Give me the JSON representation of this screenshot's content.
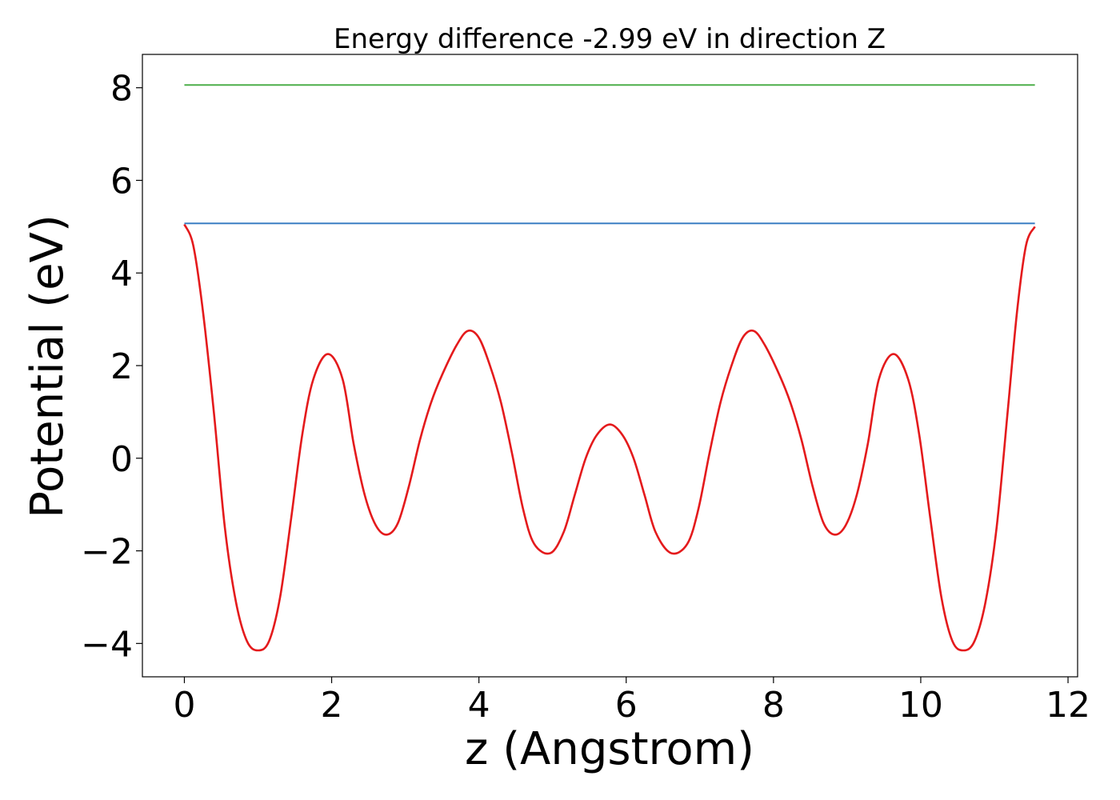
{
  "chart_data": {
    "type": "line",
    "title": "Energy difference -2.99 eV in direction Z",
    "xlabel": "z (Angstrom)",
    "ylabel": "Potential (eV)",
    "xlim": [
      -0.57,
      12.13
    ],
    "ylim": [
      -4.72,
      8.72
    ],
    "grid": false,
    "x_ticks": [
      0,
      2,
      4,
      6,
      8,
      10,
      12
    ],
    "x_tick_labels": [
      "0",
      "2",
      "4",
      "6",
      "8",
      "10",
      "12"
    ],
    "y_ticks": [
      -4,
      -2,
      0,
      2,
      4,
      6,
      8
    ],
    "y_tick_labels": [
      "−4",
      "−2",
      "0",
      "2",
      "4",
      "6",
      "8"
    ],
    "series": [
      {
        "name": "potential",
        "color": "#e41a1c",
        "x": [
          0.0,
          0.12,
          0.25,
          0.4,
          0.55,
          0.7,
          0.85,
          1.0,
          1.15,
          1.3,
          1.45,
          1.6,
          1.75,
          1.95,
          2.15,
          2.3,
          2.45,
          2.6,
          2.75,
          2.9,
          3.05,
          3.2,
          3.35,
          3.5,
          3.7,
          3.85,
          4.0,
          4.15,
          4.3,
          4.45,
          4.6,
          4.75,
          4.97,
          5.15,
          5.3,
          5.45,
          5.6,
          5.78,
          5.95,
          6.1,
          6.25,
          6.4,
          6.61,
          6.83,
          6.98,
          7.13,
          7.28,
          7.43,
          7.58,
          7.73,
          7.88,
          8.08,
          8.23,
          8.38,
          8.53,
          8.68,
          8.83,
          8.98,
          9.13,
          9.28,
          9.43,
          9.63,
          9.83,
          9.98,
          10.13,
          10.28,
          10.43,
          10.58,
          10.73,
          10.88,
          11.03,
          11.18,
          11.31,
          11.43,
          11.55
        ],
        "y": [
          5.05,
          4.6,
          3.2,
          1.0,
          -1.5,
          -3.1,
          -3.95,
          -4.15,
          -3.95,
          -3.0,
          -1.3,
          0.5,
          1.7,
          2.25,
          1.7,
          0.3,
          -0.8,
          -1.45,
          -1.65,
          -1.4,
          -0.6,
          0.4,
          1.2,
          1.8,
          2.45,
          2.75,
          2.6,
          2.0,
          1.2,
          0.1,
          -1.1,
          -1.85,
          -2.05,
          -1.6,
          -0.8,
          0.0,
          0.5,
          0.73,
          0.5,
          0.0,
          -0.8,
          -1.6,
          -2.05,
          -1.85,
          -1.1,
          0.1,
          1.2,
          2.0,
          2.6,
          2.75,
          2.45,
          1.8,
          1.2,
          0.4,
          -0.6,
          -1.4,
          -1.65,
          -1.45,
          -0.8,
          0.3,
          1.7,
          2.25,
          1.7,
          0.5,
          -1.3,
          -3.0,
          -3.95,
          -4.15,
          -3.95,
          -3.1,
          -1.5,
          1.0,
          3.2,
          4.6,
          5.0
        ]
      },
      {
        "name": "blue level",
        "color": "#3a7fc4",
        "x": [
          0.0,
          11.55
        ],
        "y": [
          5.07,
          5.07
        ]
      },
      {
        "name": "green level",
        "color": "#4daf4a",
        "x": [
          0.0,
          11.55
        ],
        "y": [
          8.06,
          8.06
        ]
      }
    ]
  }
}
